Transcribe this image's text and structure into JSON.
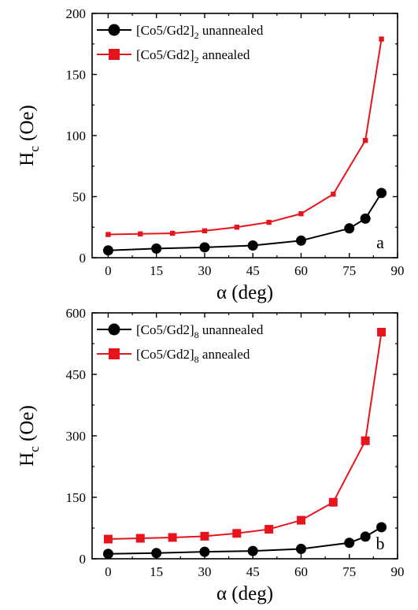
{
  "chart_data": [
    {
      "type": "line",
      "panel_label": "a",
      "xlabel": "α (deg)",
      "ylabel_main": "H",
      "ylabel_sub": "c",
      "ylabel_tail": " (Oe)",
      "xlim": [
        -5,
        90
      ],
      "ylim": [
        0,
        200
      ],
      "xticks": [
        0,
        15,
        30,
        45,
        60,
        75,
        90
      ],
      "yticks": [
        0,
        50,
        100,
        150,
        200
      ],
      "legend_position": "top-left",
      "series": [
        {
          "name": "[Co5/Gd2]2 unannealed",
          "legend_main": "[Co5/Gd2]",
          "legend_sub": "2",
          "legend_tail": " unannealed",
          "color": "#000000",
          "marker": "circle",
          "x": [
            0,
            15,
            30,
            45,
            60,
            75,
            80,
            85
          ],
          "y": [
            6,
            7.5,
            8.5,
            10,
            14,
            24,
            32,
            53
          ]
        },
        {
          "name": "[Co5/Gd2]2 annealed",
          "legend_main": "[Co5/Gd2]",
          "legend_sub": "2",
          "legend_tail": " annealed",
          "color": "#e8141b",
          "marker": "square",
          "x": [
            0,
            10,
            20,
            30,
            40,
            50,
            60,
            70,
            80,
            85
          ],
          "y": [
            19,
            19.5,
            20,
            22,
            25,
            29,
            36,
            52,
            96,
            179
          ]
        }
      ]
    },
    {
      "type": "line",
      "panel_label": "b",
      "xlabel": "α (deg)",
      "ylabel_main": "H",
      "ylabel_sub": "c",
      "ylabel_tail": " (Oe)",
      "xlim": [
        -5,
        90
      ],
      "ylim": [
        0,
        600
      ],
      "xticks": [
        0,
        15,
        30,
        45,
        60,
        75,
        90
      ],
      "yticks": [
        0,
        150,
        300,
        450,
        600
      ],
      "legend_position": "top-left",
      "series": [
        {
          "name": "[Co5/Gd2]8 unannealed",
          "legend_main": "[Co5/Gd2]",
          "legend_sub": "8",
          "legend_tail": " unannealed",
          "color": "#000000",
          "marker": "circle",
          "x": [
            0,
            15,
            30,
            45,
            60,
            75,
            80,
            85
          ],
          "y": [
            12,
            14,
            17,
            19,
            24,
            39,
            54,
            77
          ]
        },
        {
          "name": "[Co5/Gd2]8 annealed",
          "legend_main": "[Co5/Gd2]",
          "legend_sub": "8",
          "legend_tail": " annealed",
          "color": "#e8141b",
          "marker": "square",
          "x": [
            0,
            10,
            20,
            30,
            40,
            50,
            60,
            70,
            80,
            85
          ],
          "y": [
            48,
            50,
            52,
            55,
            62,
            72,
            94,
            138,
            288,
            553
          ]
        }
      ]
    }
  ]
}
